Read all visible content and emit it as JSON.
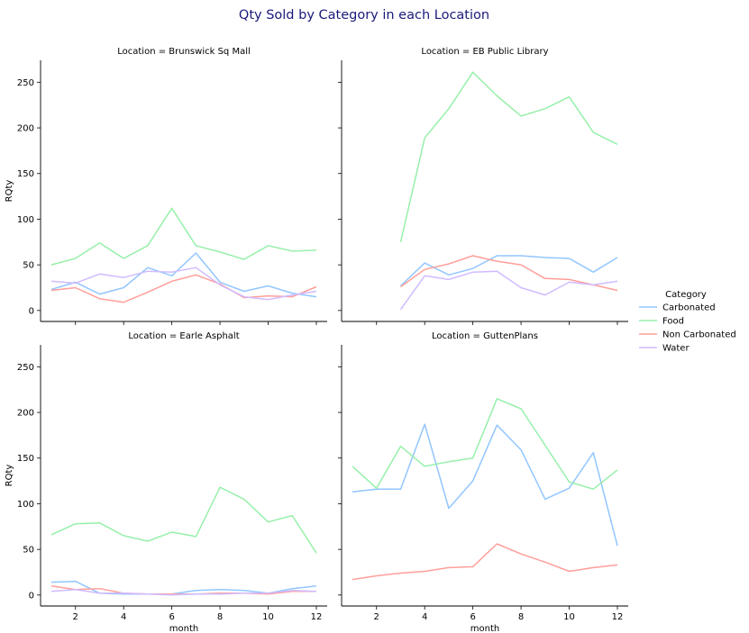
{
  "figure_title": "Qty Sold by Category in each Location",
  "colors": {
    "Carbonated": "#92c6ff",
    "Food": "#97f0aa",
    "Non Carbonated": "#ff9f9a",
    "Water": "#d0bbff",
    "title": "#1a1a7a"
  },
  "legend": {
    "title": "Category",
    "entries": [
      "Carbonated",
      "Food",
      "Non Carbonated",
      "Water"
    ]
  },
  "chart_data": [
    {
      "type": "line",
      "title": "Location = Brunswick Sq Mall",
      "xlabel": "",
      "ylabel": "RQty",
      "xticks": [
        "2",
        "4",
        "6",
        "8",
        "10",
        "12"
      ],
      "yticks": [
        "0",
        "50",
        "100",
        "150",
        "200",
        "250"
      ],
      "xlim": [
        0.55,
        12.45
      ],
      "ylim": [
        -12,
        274
      ],
      "series": [
        {
          "name": "Carbonated",
          "x": [
            1,
            2,
            3,
            4,
            5,
            6,
            7,
            8,
            9,
            10,
            11,
            12
          ],
          "values": [
            23,
            31,
            18,
            25,
            47,
            38,
            63,
            31,
            21,
            27,
            19,
            15
          ]
        },
        {
          "name": "Food",
          "x": [
            1,
            2,
            3,
            4,
            5,
            6,
            7,
            8,
            9,
            10,
            11,
            12
          ],
          "values": [
            50,
            57,
            74,
            57,
            71,
            112,
            71,
            64,
            56,
            71,
            65,
            66
          ]
        },
        {
          "name": "Non Carbonated",
          "x": [
            1,
            2,
            3,
            4,
            5,
            6,
            7,
            8,
            9,
            10,
            11,
            12
          ],
          "values": [
            22,
            25,
            13,
            9,
            20,
            32,
            39,
            29,
            14,
            16,
            15,
            26
          ]
        },
        {
          "name": "Water",
          "x": [
            1,
            2,
            3,
            4,
            5,
            6,
            7,
            8,
            9,
            10,
            11,
            12
          ],
          "values": [
            32,
            30,
            40,
            36,
            43,
            42,
            47,
            28,
            15,
            12,
            17,
            21
          ]
        }
      ]
    },
    {
      "type": "line",
      "title": "Location = EB Public Library",
      "xlabel": "",
      "ylabel": "",
      "xticks": [
        "2",
        "4",
        "6",
        "8",
        "10",
        "12"
      ],
      "yticks": [
        "0",
        "50",
        "100",
        "150",
        "200",
        "250"
      ],
      "xlim": [
        0.55,
        12.45
      ],
      "ylim": [
        -12,
        274
      ],
      "series": [
        {
          "name": "Carbonated",
          "x": [
            3,
            4,
            5,
            6,
            7,
            8,
            9,
            10,
            11,
            12
          ],
          "values": [
            27,
            52,
            39,
            46,
            60,
            60,
            58,
            57,
            42,
            58
          ]
        },
        {
          "name": "Food",
          "x": [
            3,
            4,
            5,
            6,
            7,
            8,
            9,
            10,
            11,
            12
          ],
          "values": [
            75,
            189,
            221,
            261,
            235,
            213,
            221,
            234,
            195,
            182
          ]
        },
        {
          "name": "Non Carbonated",
          "x": [
            3,
            4,
            5,
            6,
            7,
            8,
            9,
            10,
            11,
            12
          ],
          "values": [
            26,
            45,
            51,
            60,
            54,
            50,
            35,
            34,
            28,
            22
          ]
        },
        {
          "name": "Water",
          "x": [
            3,
            4,
            5,
            6,
            7,
            8,
            9,
            10,
            11,
            12
          ],
          "values": [
            1,
            38,
            34,
            42,
            43,
            25,
            17,
            31,
            28,
            32
          ]
        }
      ]
    },
    {
      "type": "line",
      "title": "Location = Earle Asphalt",
      "xlabel": "month",
      "ylabel": "RQty",
      "xticks": [
        "2",
        "4",
        "6",
        "8",
        "10",
        "12"
      ],
      "yticks": [
        "0",
        "50",
        "100",
        "150",
        "200",
        "250"
      ],
      "xlim": [
        0.55,
        12.45
      ],
      "ylim": [
        -12,
        274
      ],
      "series": [
        {
          "name": "Carbonated",
          "x": [
            1,
            2,
            3,
            4,
            5,
            6,
            7,
            8,
            9,
            10,
            11,
            12
          ],
          "values": [
            14,
            15,
            2,
            1,
            1,
            1,
            5,
            6,
            5,
            2,
            7,
            10
          ]
        },
        {
          "name": "Food",
          "x": [
            1,
            2,
            3,
            4,
            5,
            6,
            7,
            8,
            9,
            10,
            11,
            12
          ],
          "values": [
            66,
            78,
            79,
            65,
            59,
            69,
            64,
            118,
            105,
            80,
            87,
            46
          ]
        },
        {
          "name": "Non Carbonated",
          "x": [
            1,
            2,
            3,
            4,
            5,
            6,
            7,
            8,
            9,
            10,
            11,
            12
          ],
          "values": [
            10,
            6,
            7,
            2,
            1,
            1,
            1,
            2,
            2,
            1,
            4,
            4
          ]
        },
        {
          "name": "Water",
          "x": [
            1,
            2,
            3,
            4,
            5,
            6,
            7,
            8,
            9,
            10,
            11,
            12
          ],
          "values": [
            4,
            6,
            2,
            2,
            1,
            0,
            1,
            1,
            2,
            2,
            5,
            4
          ]
        }
      ]
    },
    {
      "type": "line",
      "title": "Location = GuttenPlans",
      "xlabel": "month",
      "ylabel": "",
      "xticks": [
        "2",
        "4",
        "6",
        "8",
        "10",
        "12"
      ],
      "yticks": [
        "0",
        "50",
        "100",
        "150",
        "200",
        "250"
      ],
      "xlim": [
        0.55,
        12.45
      ],
      "ylim": [
        -12,
        274
      ],
      "series": [
        {
          "name": "Carbonated",
          "x": [
            1,
            2,
            3,
            4,
            5,
            6,
            7,
            8,
            9,
            10,
            11,
            12
          ],
          "values": [
            113,
            116,
            116,
            187,
            95,
            125,
            186,
            159,
            105,
            117,
            156,
            54
          ]
        },
        {
          "name": "Food",
          "x": [
            1,
            2,
            3,
            4,
            5,
            6,
            7,
            8,
            9,
            10,
            11,
            12
          ],
          "values": [
            141,
            117,
            163,
            141,
            146,
            150,
            215,
            204,
            164,
            124,
            116,
            137
          ]
        },
        {
          "name": "Non Carbonated",
          "x": [
            1,
            2,
            3,
            4,
            5,
            6,
            7,
            8,
            9,
            10,
            11,
            12
          ],
          "values": [
            17,
            21,
            24,
            26,
            30,
            31,
            56,
            45,
            36,
            26,
            30,
            33
          ]
        }
      ]
    }
  ]
}
